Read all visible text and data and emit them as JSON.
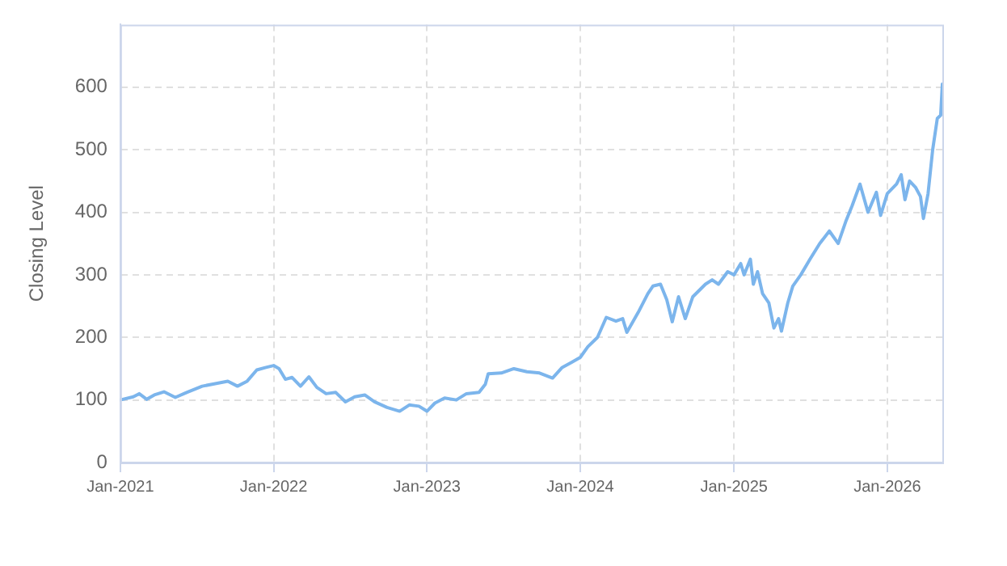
{
  "chart_data": {
    "type": "line",
    "ylabel": "Closing Level",
    "x": [
      "2021-01-01",
      "2021-02-01",
      "2021-02-15",
      "2021-03-05",
      "2021-03-23",
      "2021-04-15",
      "2021-05-12",
      "2021-06-08",
      "2021-07-15",
      "2021-08-15",
      "2021-09-14",
      "2021-10-07",
      "2021-10-30",
      "2021-11-22",
      "2021-12-14",
      "2022-01-01",
      "2022-01-14",
      "2022-01-29",
      "2022-02-14",
      "2022-03-06",
      "2022-03-26",
      "2022-04-14",
      "2022-05-06",
      "2022-05-29",
      "2022-06-21",
      "2022-07-13",
      "2022-08-06",
      "2022-08-29",
      "2022-09-28",
      "2022-10-28",
      "2022-11-20",
      "2022-12-13",
      "2023-01-01",
      "2023-01-20",
      "2023-02-12",
      "2023-03-12",
      "2023-04-05",
      "2023-05-05",
      "2023-05-20",
      "2023-05-27",
      "2023-06-27",
      "2023-07-27",
      "2023-08-27",
      "2023-09-26",
      "2023-10-27",
      "2023-11-19",
      "2023-12-11",
      "2024-01-01",
      "2024-01-19",
      "2024-02-11",
      "2024-03-03",
      "2024-03-26",
      "2024-04-11",
      "2024-04-21",
      "2024-05-18",
      "2024-06-10",
      "2024-06-22",
      "2024-07-10",
      "2024-07-25",
      "2024-08-07",
      "2024-08-22",
      "2024-09-07",
      "2024-09-25",
      "2024-10-25",
      "2024-11-10",
      "2024-11-25",
      "2024-12-17",
      "2025-01-01",
      "2025-01-17",
      "2025-01-25",
      "2025-02-09",
      "2025-02-16",
      "2025-02-26",
      "2025-03-10",
      "2025-03-25",
      "2025-04-06",
      "2025-04-17",
      "2025-04-24",
      "2025-05-09",
      "2025-05-21",
      "2025-06-09",
      "2025-07-01",
      "2025-07-24",
      "2025-08-16",
      "2025-09-06",
      "2025-09-24",
      "2025-10-09",
      "2025-10-28",
      "2025-11-16",
      "2025-12-06",
      "2025-12-16",
      "2026-01-01",
      "2026-01-23",
      "2026-02-03",
      "2026-02-12",
      "2026-02-23",
      "2026-03-09",
      "2026-03-21",
      "2026-03-28",
      "2026-04-08",
      "2026-04-19",
      "2026-04-30",
      "2026-05-08",
      "2026-05-12"
    ],
    "series": [
      {
        "color": "#7cb5ec",
        "values": [
          100,
          105,
          110,
          101,
          108,
          113,
          104,
          112,
          122,
          126,
          130,
          122,
          130,
          148,
          152,
          155,
          150,
          133,
          136,
          122,
          137,
          120,
          110,
          112,
          97,
          105,
          108,
          97,
          88,
          82,
          92,
          90,
          82,
          95,
          103,
          100,
          110,
          112,
          125,
          142,
          143,
          150,
          145,
          143,
          135,
          152,
          160,
          168,
          185,
          200,
          232,
          226,
          230,
          208,
          240,
          270,
          282,
          285,
          260,
          225,
          265,
          230,
          265,
          285,
          292,
          285,
          305,
          300,
          318,
          300,
          325,
          285,
          305,
          270,
          255,
          215,
          230,
          210,
          255,
          282,
          300,
          325,
          350,
          370,
          350,
          385,
          410,
          445,
          400,
          432,
          395,
          430,
          445,
          460,
          420,
          450,
          440,
          425,
          390,
          430,
          500,
          550,
          555,
          605
        ]
      }
    ],
    "xlim": [
      "2021-01-01",
      "2026-05-12"
    ],
    "xticks": [
      {
        "value": "2021-01",
        "label": "Jan-2021"
      },
      {
        "value": "2022-01",
        "label": "Jan-2022"
      },
      {
        "value": "2023-01",
        "label": "Jan-2023"
      },
      {
        "value": "2024-01",
        "label": "Jan-2024"
      },
      {
        "value": "2025-01",
        "label": "Jan-2025"
      },
      {
        "value": "2026-01",
        "label": "Jan-2026"
      }
    ],
    "ylim": [
      0,
      700
    ],
    "yticks": [
      0,
      100,
      200,
      300,
      400,
      500,
      600
    ],
    "grid": true,
    "legend": false,
    "marker": "none",
    "line_style": "solid"
  }
}
